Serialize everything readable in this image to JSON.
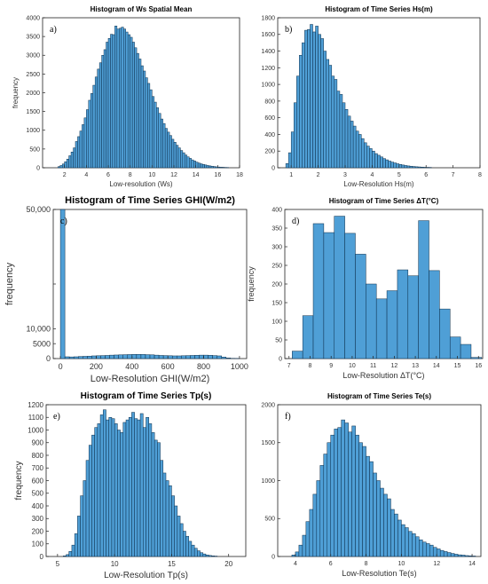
{
  "colors": {
    "bar_fill": "#4f9fd6",
    "bar_stroke": "#0b2d4a",
    "axis": "#222222"
  },
  "chart_data": [
    {
      "panel": "a)",
      "type": "bar",
      "title": "Histogram of Ws Spatial Mean",
      "xlabel": "Low-resolution (Ws)",
      "ylabel": "frequency",
      "xlim": [
        0,
        18
      ],
      "ylim": [
        0,
        4000
      ],
      "xticks": [
        "2",
        "4",
        "6",
        "8",
        "10",
        "12",
        "14",
        "16",
        "18"
      ],
      "yticks": [
        "0",
        "500",
        "1000",
        "1500",
        "2000",
        "2500",
        "3000",
        "3500",
        "4000"
      ],
      "bin_start": 1.4,
      "bin_width": 0.2,
      "values": [
        30,
        60,
        100,
        160,
        230,
        320,
        420,
        530,
        700,
        830,
        980,
        1150,
        1330,
        1550,
        1800,
        1980,
        2200,
        2420,
        2630,
        2800,
        3000,
        3150,
        3350,
        3450,
        3560,
        3550,
        3780,
        3700,
        3720,
        3750,
        3700,
        3620,
        3550,
        3480,
        3350,
        3200,
        3050,
        2900,
        2720,
        2580,
        2400,
        2250,
        2080,
        1900,
        1750,
        1600,
        1450,
        1300,
        1180,
        1050,
        950,
        860,
        760,
        680,
        600,
        530,
        460,
        400,
        340,
        290,
        250,
        210,
        180,
        150,
        125,
        105,
        90,
        75,
        60,
        50,
        40,
        32,
        25,
        20,
        15,
        12,
        9,
        7
      ]
    },
    {
      "panel": "b)",
      "type": "bar",
      "title": "Histogram of Time Series Hs(m)",
      "xlabel": "Low-Resolution Hs(m)",
      "ylabel": "",
      "xlim": [
        0.5,
        8
      ],
      "ylim": [
        0,
        1800
      ],
      "xticks": [
        "1",
        "2",
        "3",
        "4",
        "5",
        "6",
        "7",
        "8"
      ],
      "yticks": [
        "0",
        "200",
        "400",
        "600",
        "800",
        "1000",
        "1200",
        "1400",
        "1600",
        "1800"
      ],
      "bin_start": 0.8,
      "bin_width": 0.1,
      "values": [
        50,
        180,
        430,
        780,
        1100,
        1350,
        1500,
        1650,
        1660,
        1720,
        1630,
        1700,
        1600,
        1550,
        1400,
        1300,
        1230,
        1100,
        1060,
        920,
        880,
        780,
        700,
        620,
        560,
        500,
        440,
        400,
        350,
        300,
        260,
        230,
        200,
        170,
        150,
        130,
        110,
        95,
        80,
        68,
        58,
        48,
        40,
        33,
        27,
        22,
        18,
        15,
        12,
        10,
        8,
        6,
        5,
        4
      ]
    },
    {
      "panel": "c)",
      "type": "bar",
      "title": "Histogram of Time Series GHI(W/m2)",
      "xlabel": "Low-Resolution GHI(W/m2)",
      "ylabel": "frequency",
      "xlim": [
        -40,
        1040
      ],
      "ylim": [
        0,
        50000
      ],
      "xticks": [
        "0",
        "200",
        "400",
        "600",
        "800",
        "1000"
      ],
      "yticks": [
        "0",
        "5000",
        "10,000",
        "",
        "50,000"
      ],
      "bin_start": 0,
      "bin_width": 25,
      "values": [
        50000,
        600,
        550,
        600,
        700,
        750,
        800,
        900,
        950,
        1000,
        1050,
        1150,
        1200,
        1250,
        1300,
        1350,
        1400,
        1400,
        1380,
        1300,
        1250,
        1150,
        1050,
        1000,
        950,
        900,
        900,
        950,
        1000,
        1050,
        1100,
        1150,
        1150,
        1100,
        1000,
        900,
        500,
        200,
        80,
        30
      ]
    },
    {
      "panel": "d)",
      "type": "bar",
      "title": "Histogram of Time Series ΔT(°C)",
      "xlabel": "Low-Resolution ΔT(°C)",
      "ylabel": "frequency",
      "xlim": [
        6.8,
        16.2
      ],
      "ylim": [
        0,
        400
      ],
      "xticks": [
        "7",
        "8",
        "9",
        "10",
        "11",
        "12",
        "13",
        "14",
        "15",
        "16"
      ],
      "yticks": [
        "0",
        "50",
        "100",
        "150",
        "200",
        "250",
        "300",
        "350",
        "400"
      ],
      "bin_start": 7.15,
      "bin_width": 0.5,
      "values": [
        20,
        115,
        362,
        338,
        382,
        336,
        280,
        200,
        160,
        182,
        238,
        222,
        370,
        236,
        133,
        58,
        38,
        3
      ]
    },
    {
      "panel": "e)",
      "type": "bar",
      "title": "Histogram of Time Series Tp(s)",
      "xlabel": "Low-Resolution Tp(s)",
      "ylabel": "frequency",
      "xlim": [
        4,
        21.5
      ],
      "ylim": [
        0,
        1200
      ],
      "xticks": [
        "5",
        "10",
        "15",
        "20"
      ],
      "yticks": [
        "0",
        "100",
        "200",
        "300",
        "400",
        "500",
        "600",
        "700",
        "800",
        "900",
        "1000",
        "1100",
        "1200"
      ],
      "bin_start": 5.5,
      "bin_width": 0.25,
      "values": [
        5,
        15,
        40,
        90,
        180,
        320,
        480,
        600,
        760,
        880,
        960,
        1020,
        1050,
        1120,
        1160,
        1080,
        1100,
        1090,
        1050,
        1000,
        980,
        1060,
        1080,
        1100,
        1140,
        1090,
        1080,
        1130,
        1020,
        1100,
        1050,
        980,
        920,
        900,
        760,
        660,
        600,
        560,
        480,
        400,
        320,
        260,
        200,
        160,
        120,
        90,
        65,
        45,
        30,
        20,
        12,
        8,
        5,
        3
      ]
    },
    {
      "panel": "f)",
      "type": "bar",
      "title": "Histogram of Time Series Te(s)",
      "xlabel": "Low-Resolution Te(s)",
      "ylabel": "",
      "xlim": [
        3,
        14.5
      ],
      "ylim": [
        0,
        2000
      ],
      "xticks": [
        "4",
        "6",
        "8",
        "10",
        "12",
        "14"
      ],
      "yticks": [
        "0",
        "500",
        "1000",
        "1500",
        "2000"
      ],
      "bin_start": 3.8,
      "bin_width": 0.2,
      "values": [
        20,
        60,
        150,
        280,
        460,
        620,
        820,
        1000,
        1200,
        1350,
        1500,
        1600,
        1680,
        1700,
        1800,
        1760,
        1640,
        1720,
        1600,
        1500,
        1450,
        1320,
        1250,
        1100,
        1000,
        900,
        820,
        760,
        620,
        560,
        480,
        420,
        380,
        330,
        300,
        260,
        220,
        190,
        170,
        150,
        120,
        100,
        80,
        65,
        52,
        40,
        30,
        22,
        18,
        12,
        9,
        6
      ]
    }
  ]
}
